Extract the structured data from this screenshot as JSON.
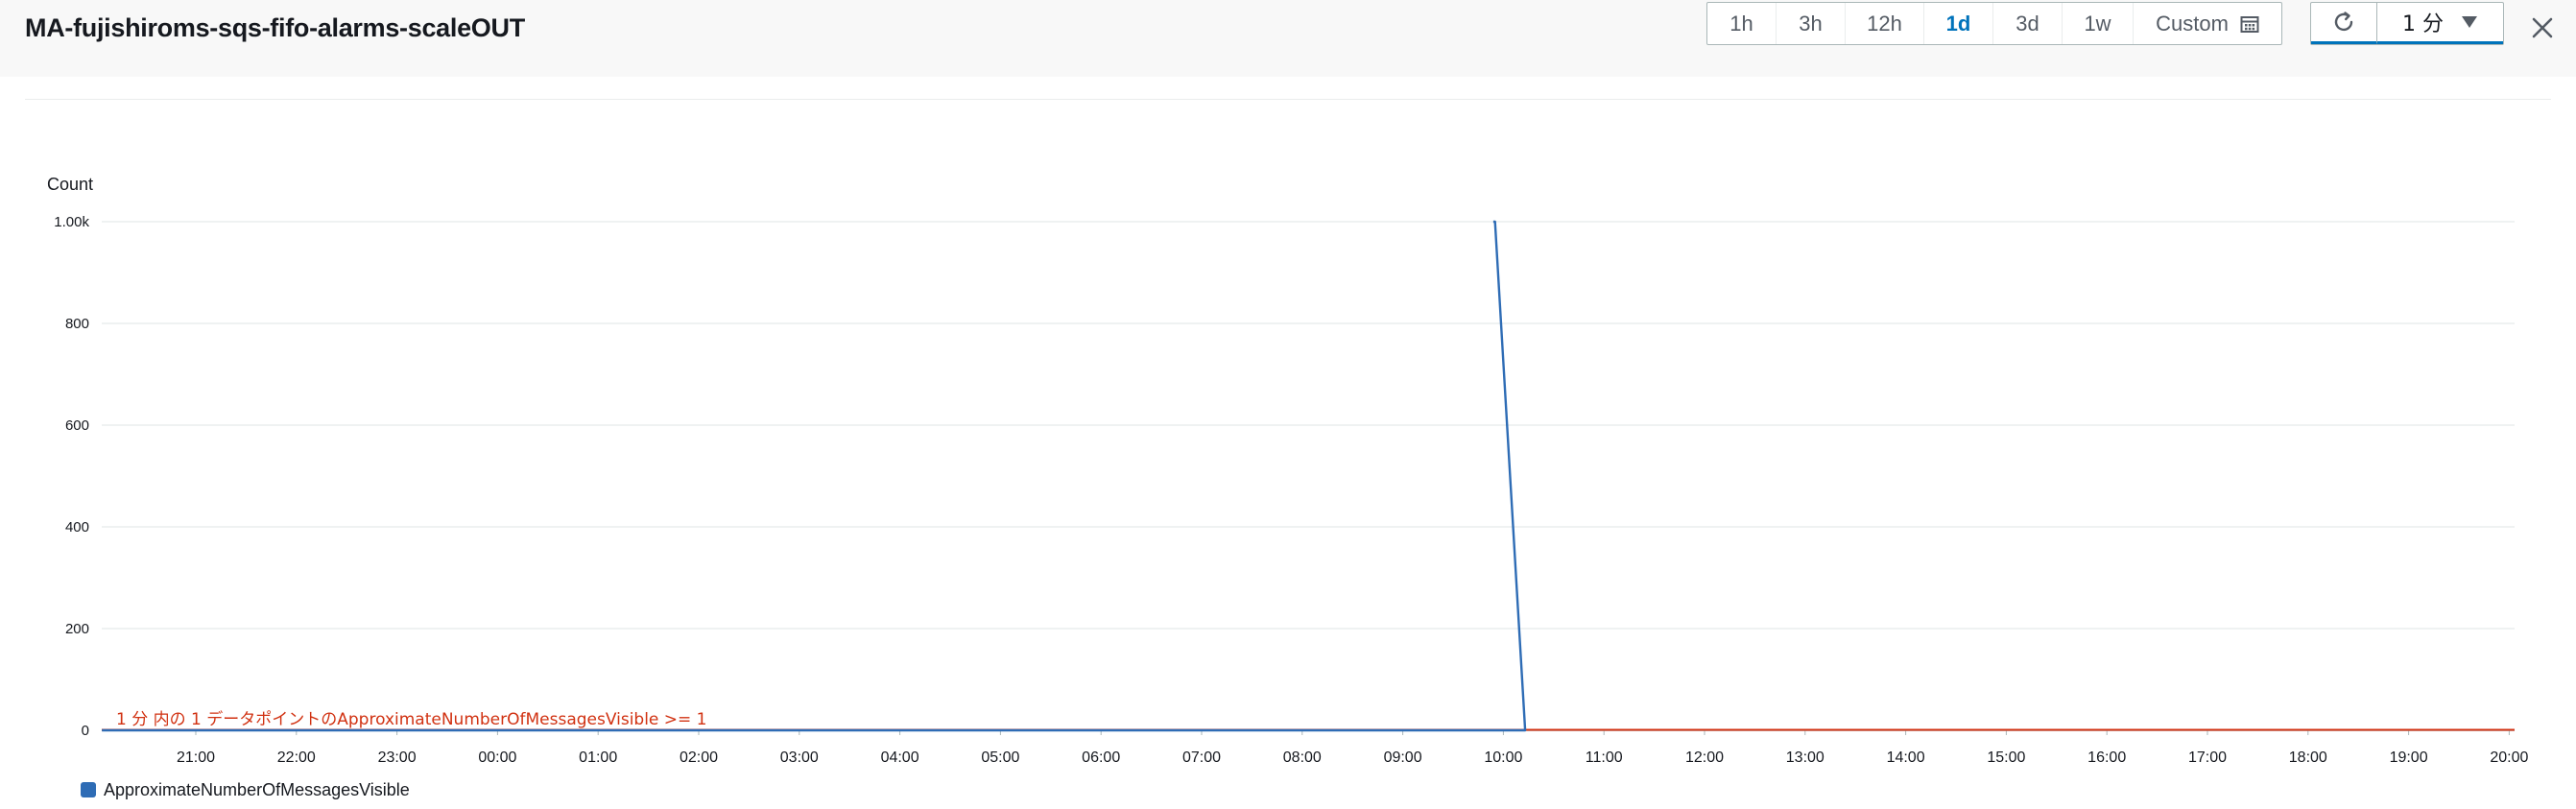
{
  "header": {
    "title": "MA-fujishiroms-sqs-fifo-alarms-scaleOUT",
    "time_ranges": [
      {
        "label": "1h",
        "active": false
      },
      {
        "label": "3h",
        "active": false
      },
      {
        "label": "12h",
        "active": false
      },
      {
        "label": "1d",
        "active": true
      },
      {
        "label": "3d",
        "active": false
      },
      {
        "label": "1w",
        "active": false
      },
      {
        "label": "Custom",
        "active": false
      }
    ],
    "refresh_interval": "1 分"
  },
  "colors": {
    "series": "#2e6cb5",
    "threshold": "#d13212",
    "active_range": "#0073bb",
    "grid": "#eaeded"
  },
  "chart_data": {
    "type": "line",
    "ylabel": "Count",
    "ylim": [
      0,
      1000
    ],
    "yticks": [
      {
        "value": 0,
        "label": "0"
      },
      {
        "value": 200,
        "label": "200"
      },
      {
        "value": 400,
        "label": "400"
      },
      {
        "value": 600,
        "label": "600"
      },
      {
        "value": 800,
        "label": "800"
      },
      {
        "value": 1000,
        "label": "1.00k"
      }
    ],
    "xlim": [
      "20:06",
      "20:04 (+1d)"
    ],
    "xticks": [
      "21:00",
      "22:00",
      "23:00",
      "00:00",
      "01:00",
      "02:00",
      "03:00",
      "04:00",
      "05:00",
      "06:00",
      "07:00",
      "08:00",
      "09:00",
      "10:00",
      "11:00",
      "12:00",
      "13:00",
      "14:00",
      "15:00",
      "16:00",
      "17:00",
      "18:00",
      "19:00",
      "20:00"
    ],
    "series": [
      {
        "name": "ApproximateNumberOfMessagesVisible",
        "points": [
          {
            "x": "09:54",
            "y": 1000
          },
          {
            "x": "09:55",
            "y": 1000
          },
          {
            "x": "10:13",
            "y": 0
          },
          {
            "x": "20:04",
            "y": 0
          }
        ]
      }
    ],
    "threshold": {
      "value": 1,
      "label": "1 分 内の 1 データポイントのApproximateNumberOfMessagesVisible >= 1"
    },
    "grid": true,
    "legend_position": "bottom-left"
  }
}
